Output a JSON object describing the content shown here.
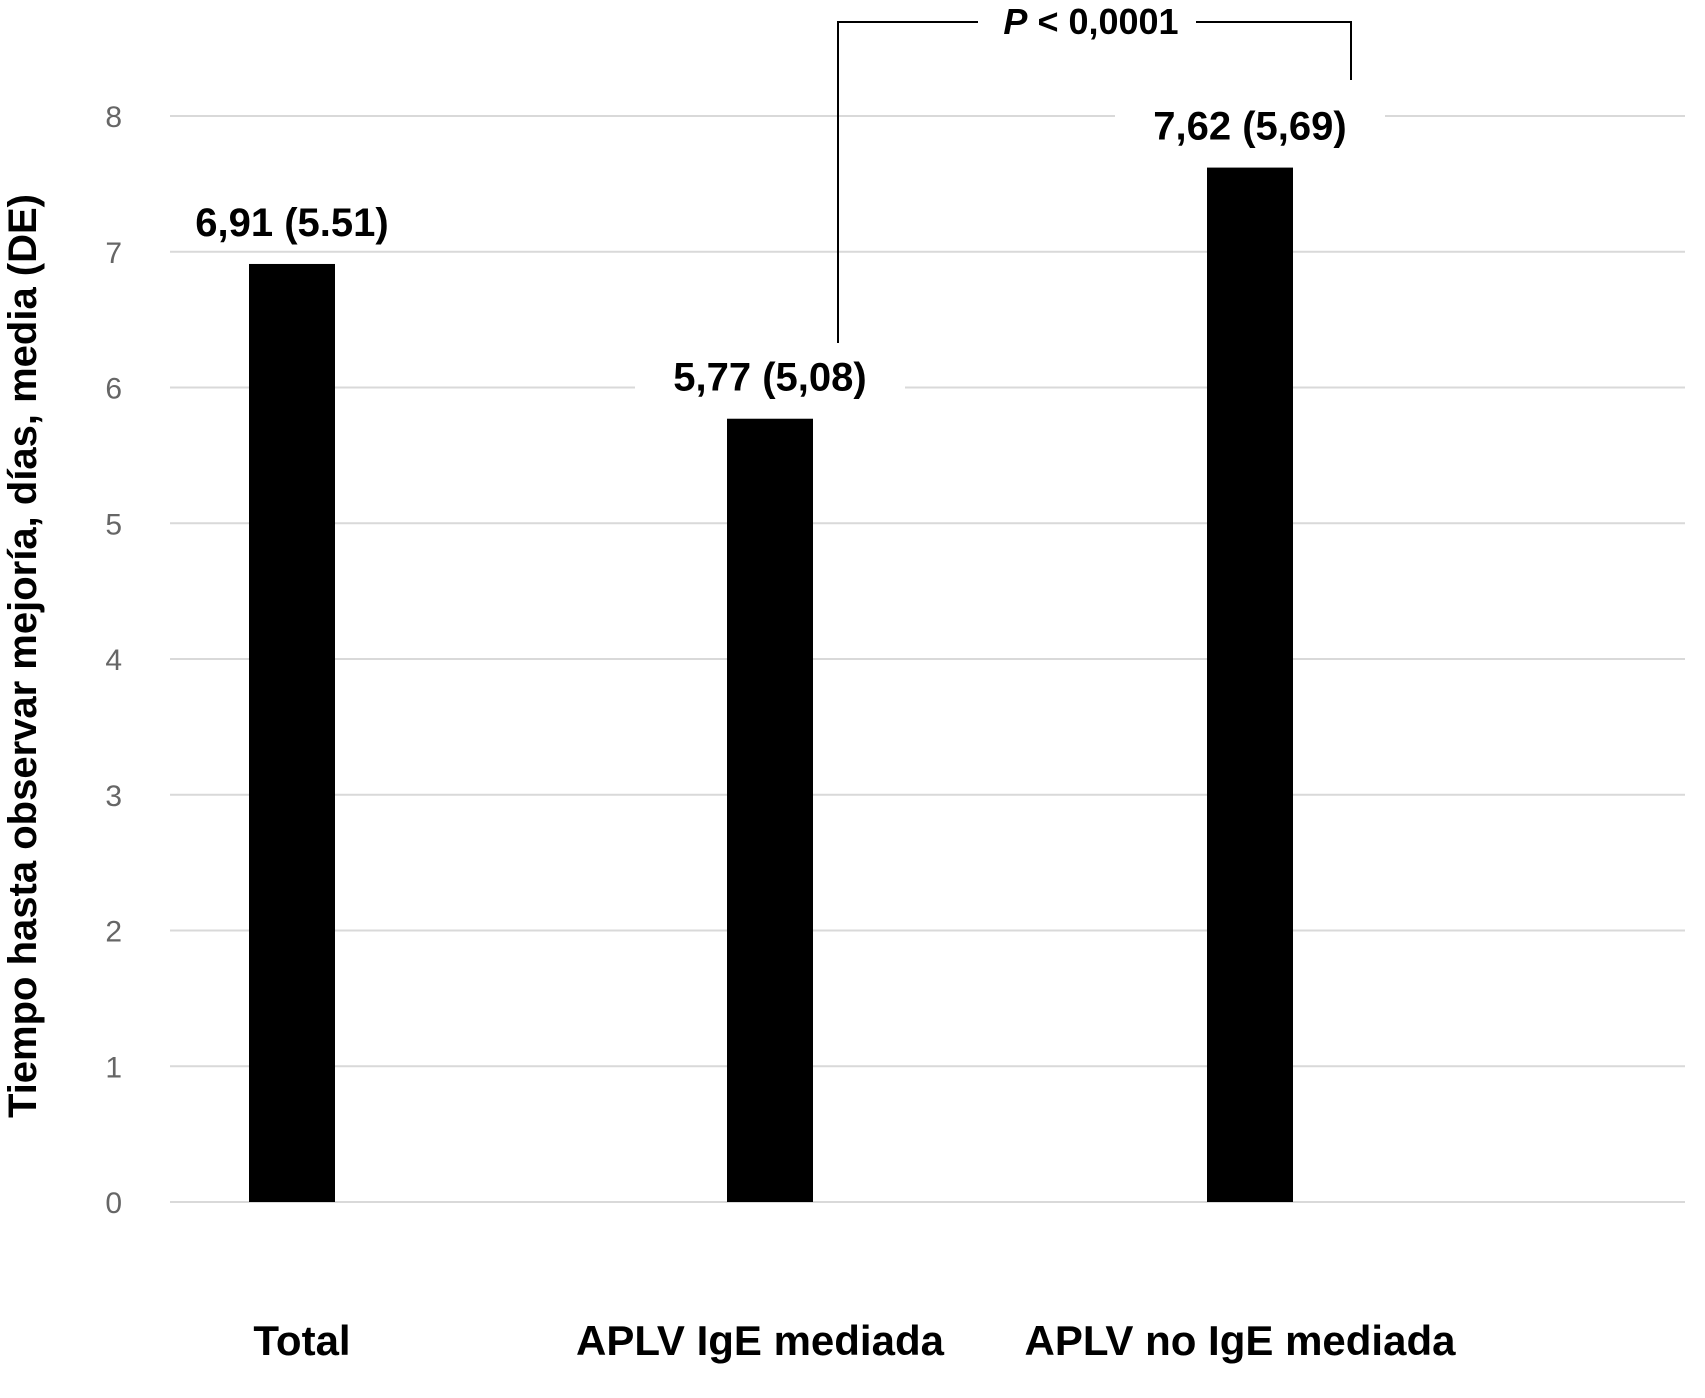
{
  "chart_data": {
    "type": "bar",
    "categories": [
      "Total",
      "APLV IgE mediada",
      "APLV no IgE mediada"
    ],
    "values": [
      6.91,
      5.77,
      7.62
    ],
    "data_labels": [
      "6,91 (5.51)",
      "5,77 (5,08)",
      "7,62 (5,69)"
    ],
    "ylabel": "Tiempo hasta observar mejoría, días, media (DE)",
    "ylim": [
      0,
      8
    ],
    "yticks": [
      0,
      1,
      2,
      3,
      4,
      5,
      6,
      7,
      8
    ],
    "grid": true,
    "bar_color": "#000000",
    "grid_color": "#d9d9d9",
    "annotation": {
      "p_symbol": "P",
      "p_rest": " < 0,0001",
      "between": [
        1,
        2
      ]
    }
  }
}
